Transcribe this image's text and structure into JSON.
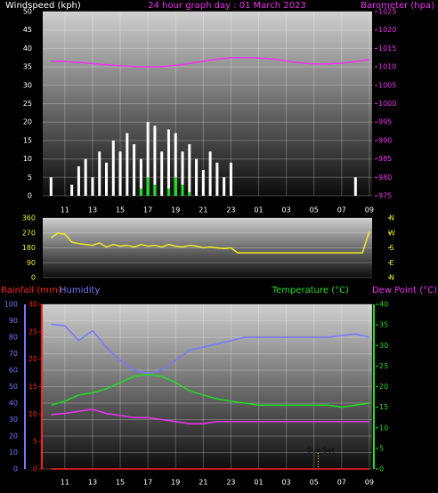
{
  "chart_data": [
    {
      "type": "bar",
      "title": "24 hour graph day : 01 March 2023",
      "x": [
        10,
        10.5,
        11,
        11.5,
        12,
        12.5,
        13,
        13.5,
        14,
        14.5,
        15,
        15.5,
        16,
        16.5,
        17,
        17.5,
        18,
        18.5,
        19,
        19.5,
        20,
        20.5,
        21,
        21.5,
        22,
        22.5,
        23,
        23.5,
        24,
        24.5,
        25,
        25.5,
        26,
        26.5,
        27,
        27.5,
        28,
        28.5,
        29,
        29.5,
        30,
        30.5,
        31,
        31.5,
        32,
        32.5,
        33
      ],
      "xlim": [
        9.4,
        33.2
      ],
      "xticks": [
        11,
        13,
        15,
        17,
        19,
        21,
        23,
        {
          "value": 25,
          "label": "01"
        },
        {
          "value": 27,
          "label": "03"
        },
        {
          "value": 29,
          "label": "05"
        },
        {
          "value": 31,
          "label": "07"
        },
        {
          "value": 33,
          "label": "09"
        }
      ],
      "ylim": [
        0,
        50
      ],
      "yticks": [
        0,
        5,
        10,
        15,
        20,
        25,
        30,
        35,
        40,
        45,
        50
      ],
      "y2lim": [
        975,
        1025
      ],
      "y2ticks": [
        975,
        980,
        985,
        990,
        995,
        1000,
        1005,
        1010,
        1015,
        1020,
        1025
      ],
      "grid": true,
      "series": [
        {
          "name": "Windspeed (kph)",
          "type": "bar",
          "color": "#ffffff",
          "values": [
            5,
            0,
            0,
            3,
            8,
            10,
            5,
            12,
            9,
            15,
            12,
            17,
            14,
            10,
            20,
            19,
            12,
            18,
            17,
            12,
            14,
            10,
            7,
            12,
            9,
            5,
            9,
            0,
            0,
            0,
            0,
            0,
            0,
            0,
            0,
            0,
            0,
            0,
            0,
            0,
            0,
            0,
            0,
            0,
            5,
            0,
            0
          ]
        },
        {
          "type": "bar",
          "color": "#22dd22",
          "values": [
            0,
            0,
            0,
            0,
            0,
            0,
            0,
            0,
            0,
            0,
            0,
            0,
            0,
            2,
            5,
            3,
            0,
            2,
            5,
            3,
            1,
            0,
            0,
            0,
            0,
            0,
            0,
            0,
            0,
            0,
            0,
            0,
            0,
            0,
            0,
            0,
            0,
            0,
            0,
            0,
            0,
            0,
            0,
            0,
            0,
            0,
            0
          ]
        },
        {
          "name": "Barometer (hpa)",
          "type": "line",
          "axis": "y2",
          "color": "#ee33ee",
          "values": [
            1011.5,
            1011.5,
            1011.4,
            1011.3,
            1011.2,
            1011,
            1010.9,
            1010.7,
            1010.6,
            1010.4,
            1010.3,
            1010.2,
            1010.1,
            1010,
            1010,
            1010,
            1010.1,
            1010.2,
            1010.4,
            1010.6,
            1010.9,
            1011.2,
            1011.5,
            1011.8,
            1012.1,
            1012.3,
            1012.5,
            1012.5,
            1012.5,
            1012.5,
            1012.4,
            1012.3,
            1012.1,
            1011.9,
            1011.6,
            1011.3,
            1011.1,
            1010.9,
            1010.8,
            1010.8,
            1010.8,
            1010.9,
            1011,
            1011.2,
            1011.4,
            1011.7,
            1012
          ]
        }
      ]
    },
    {
      "type": "line",
      "x": [
        10,
        10.5,
        11,
        11.5,
        12,
        12.5,
        13,
        13.5,
        14,
        14.5,
        15,
        15.5,
        16,
        16.5,
        17,
        17.5,
        18,
        18.5,
        19,
        19.5,
        20,
        20.5,
        21,
        21.5,
        22,
        22.5,
        23,
        23.5,
        24,
        24.5,
        25,
        25.5,
        26,
        26.5,
        27,
        27.5,
        28,
        28.5,
        29,
        29.5,
        30,
        30.5,
        31,
        31.5,
        32,
        32.5,
        33
      ],
      "xlim": [
        9.4,
        33.2
      ],
      "ylim": [
        0,
        360
      ],
      "yticks": [
        0,
        90,
        180,
        270,
        360
      ],
      "y2lim": [
        0,
        360
      ],
      "y2ticks": [
        {
          "value": 360,
          "label": "N"
        },
        {
          "value": 270,
          "label": "W"
        },
        {
          "value": 180,
          "label": "S"
        },
        {
          "value": 90,
          "label": "E"
        },
        {
          "value": 0,
          "label": "N"
        }
      ],
      "grid": true,
      "series": [
        {
          "type": "line",
          "color": "#eeee22",
          "values": [
            240,
            270,
            262,
            215,
            205,
            200,
            195,
            210,
            185,
            200,
            190,
            195,
            185,
            200,
            190,
            195,
            185,
            200,
            190,
            185,
            195,
            190,
            180,
            185,
            180,
            175,
            180,
            150,
            150,
            150,
            150,
            150,
            150,
            150,
            150,
            150,
            150,
            150,
            150,
            150,
            150,
            150,
            150,
            150,
            150,
            150,
            280
          ]
        }
      ]
    },
    {
      "type": "line",
      "x": [
        10,
        11,
        12,
        13,
        14,
        15,
        16,
        17,
        18,
        19,
        20,
        21,
        22,
        23,
        24,
        25,
        26,
        27,
        28,
        29,
        30,
        31,
        32,
        33
      ],
      "xlim": [
        9.4,
        33.2
      ],
      "xticks": [
        11,
        13,
        15,
        17,
        19,
        21,
        23,
        {
          "value": 25,
          "label": "01"
        },
        {
          "value": 27,
          "label": "03"
        },
        {
          "value": 29,
          "label": "05"
        },
        {
          "value": 31,
          "label": "07"
        },
        {
          "value": 33,
          "label": "09"
        }
      ],
      "ylim": [
        0,
        100
      ],
      "yticks": [
        0,
        10,
        20,
        30,
        40,
        50,
        60,
        70,
        80,
        90,
        100
      ],
      "y3lim": [
        0,
        30
      ],
      "y3ticks": [
        0,
        5,
        10,
        15,
        20,
        25,
        30
      ],
      "y2lim": [
        0,
        40
      ],
      "y2ticks": [
        0,
        5,
        10,
        15,
        20,
        25,
        30,
        35,
        40
      ],
      "grid": true,
      "annotations": [
        {
          "text": "Sun Set",
          "x": 29.3
        }
      ],
      "series": [
        {
          "name": "Rainfall (mm)",
          "type": "line",
          "axis": "y3",
          "color": "#ff2222",
          "values": [
            0,
            0,
            0,
            0,
            0,
            0,
            0,
            0,
            0,
            0,
            0,
            0,
            0,
            0,
            0,
            0,
            0,
            0,
            0,
            0,
            0,
            0,
            0,
            0
          ]
        },
        {
          "name": "Humidity",
          "type": "line",
          "color": "#7777ff",
          "values": [
            88,
            87,
            78,
            84,
            74,
            66,
            60,
            58,
            60,
            66,
            72,
            74,
            76,
            78,
            80,
            80,
            80,
            80,
            80,
            80,
            80,
            81,
            82,
            80
          ]
        },
        {
          "name": "Temperature (°C)",
          "type": "line",
          "axis": "y2",
          "color": "#22dd22",
          "values": [
            15.5,
            16.5,
            18,
            18.5,
            19.5,
            21,
            22.5,
            23,
            22.5,
            21,
            19,
            18,
            17,
            16.5,
            16,
            15.5,
            15.5,
            15.5,
            15.5,
            15.5,
            15.5,
            15,
            15.5,
            16
          ]
        },
        {
          "name": "Dew Point (°C)",
          "type": "line",
          "axis": "y2",
          "color": "#ee33ee",
          "values": [
            13.2,
            13.5,
            14,
            14.5,
            13.5,
            13,
            12.5,
            12.5,
            12,
            11.5,
            11,
            11,
            11.5,
            11.5,
            11.5,
            11.5,
            11.5,
            11.5,
            11.5,
            11.5,
            11.5,
            11.5,
            11.5,
            11.5
          ]
        }
      ]
    }
  ]
}
